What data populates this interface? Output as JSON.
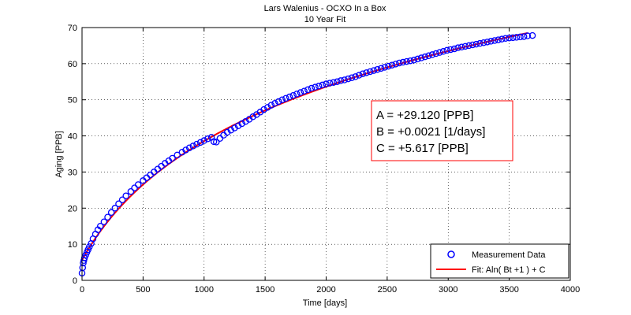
{
  "chart_data": {
    "type": "scatter",
    "title": "Lars Walenius - OCXO In a Box",
    "subtitle": "10 Year Fit",
    "xlabel": "Time [days]",
    "ylabel": "Aging [PPB]",
    "xlim": [
      0,
      4000
    ],
    "ylim": [
      0,
      70
    ],
    "xticks": [
      0,
      500,
      1000,
      1500,
      2000,
      2500,
      3000,
      3500,
      4000
    ],
    "yticks": [
      0,
      10,
      20,
      30,
      40,
      50,
      60,
      70
    ],
    "grid": true,
    "legend_position": "bottom-right",
    "series": [
      {
        "name": "Measurement Data",
        "kind": "markers",
        "marker": "circle",
        "color": "#0000ff",
        "x": [
          0,
          5,
          10,
          15,
          20,
          30,
          40,
          50,
          60,
          75,
          90,
          110,
          130,
          150,
          180,
          210,
          240,
          270,
          300,
          330,
          360,
          400,
          430,
          460,
          500,
          530,
          560,
          590,
          620,
          650,
          680,
          710,
          740,
          780,
          820,
          850,
          880,
          910,
          940,
          970,
          1000,
          1030,
          1060,
          1080,
          1100,
          1130,
          1160,
          1190,
          1220,
          1250,
          1280,
          1310,
          1340,
          1370,
          1400,
          1430,
          1460,
          1490,
          1520,
          1550,
          1580,
          1610,
          1640,
          1670,
          1700,
          1730,
          1760,
          1790,
          1820,
          1850,
          1880,
          1910,
          1940,
          1970,
          2000,
          2030,
          2060,
          2090,
          2120,
          2150,
          2180,
          2210,
          2240,
          2270,
          2300,
          2330,
          2360,
          2390,
          2420,
          2450,
          2480,
          2510,
          2540,
          2570,
          2600,
          2630,
          2660,
          2690,
          2720,
          2750,
          2780,
          2810,
          2840,
          2870,
          2900,
          2930,
          2960,
          2990,
          3020,
          3050,
          3080,
          3110,
          3140,
          3170,
          3200,
          3230,
          3260,
          3290,
          3320,
          3350,
          3380,
          3410,
          3440,
          3470,
          3500,
          3530,
          3560,
          3590,
          3620,
          3650,
          3690
        ],
        "y": [
          2.0,
          3.5,
          4.8,
          5.5,
          6.2,
          7.0,
          7.8,
          8.5,
          9.3,
          10.2,
          11.5,
          12.8,
          14.0,
          15.0,
          16.2,
          17.5,
          18.8,
          20.0,
          21.2,
          22.3,
          23.4,
          24.6,
          25.6,
          26.5,
          27.6,
          28.4,
          29.2,
          30.0,
          30.8,
          31.6,
          32.4,
          33.1,
          33.8,
          34.7,
          35.5,
          36.1,
          36.7,
          37.2,
          37.7,
          38.2,
          38.7,
          39.2,
          39.6,
          38.4,
          38.3,
          39.3,
          40.2,
          41.0,
          41.6,
          42.2,
          42.8,
          43.4,
          44.0,
          44.6,
          45.3,
          45.9,
          46.6,
          47.3,
          47.9,
          48.5,
          49.0,
          49.5,
          50.0,
          50.4,
          50.8,
          51.2,
          51.6,
          52.0,
          52.4,
          52.8,
          53.2,
          53.5,
          53.8,
          54.1,
          54.4,
          54.6,
          54.8,
          55.0,
          55.3,
          55.5,
          55.8,
          56.1,
          56.4,
          56.8,
          57.2,
          57.5,
          57.8,
          58.1,
          58.4,
          58.7,
          59.0,
          59.3,
          59.6,
          59.9,
          60.2,
          60.4,
          60.6,
          60.8,
          61.0,
          61.3,
          61.6,
          61.9,
          62.2,
          62.5,
          62.8,
          63.1,
          63.4,
          63.7,
          63.9,
          64.1,
          64.4,
          64.6,
          64.8,
          65.0,
          65.2,
          65.4,
          65.6,
          65.8,
          66.0,
          66.2,
          66.4,
          66.6,
          66.8,
          67.0,
          67.1,
          67.2,
          67.3,
          67.4,
          67.5,
          67.7,
          67.8
        ]
      },
      {
        "name": "Fit: Aln( Bt +1 ) + C",
        "kind": "line",
        "color": "#ff0000",
        "function": "A*ln(B*t+1)+C",
        "x_range": [
          0,
          3650
        ],
        "params": {
          "A": 29.12,
          "B": 0.0021,
          "C": 5.617
        }
      }
    ],
    "annotation": {
      "lines": [
        "A = +29.120 [PPB]",
        "B = +0.0021 [1/days]",
        "C = +5.617 [PPB]"
      ],
      "border_color": "#ff0000"
    }
  }
}
